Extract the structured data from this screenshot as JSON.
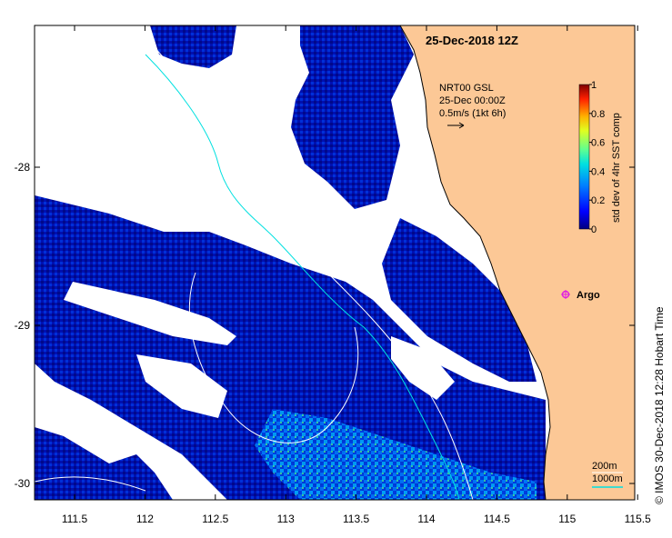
{
  "title": "25-Dec-2018 12Z",
  "current_info": {
    "line1": "NRT00 GSL",
    "line2": "25-Dec 00:00Z",
    "line3": "0.5m/s (1kt 6h)"
  },
  "colorbar": {
    "label": "std dev of 4hr SST comp",
    "ticks": [
      "0",
      "0.2",
      "0.4",
      "0.6",
      "0.8",
      "1"
    ],
    "colors": [
      "#00007f",
      "#0000ff",
      "#007fff",
      "#00ffff",
      "#7fff7f",
      "#ffff00",
      "#ff7f00",
      "#ff0000",
      "#7f0000"
    ]
  },
  "argo": {
    "label": "Argo",
    "color": "#e020e0"
  },
  "depth_legend": {
    "label1": "200m",
    "label2": "1000m",
    "color1": "#ffffff",
    "color2": "#00e0e0"
  },
  "credit": "© IMOS 30-Dec-2018 12:28 Hobart Time",
  "axes": {
    "x_ticks": [
      "111.5",
      "112",
      "112.5",
      "113",
      "113.5",
      "114",
      "114.5",
      "115",
      "115.5"
    ],
    "y_ticks": [
      "-28",
      "-29",
      "-30"
    ]
  },
  "colors": {
    "land": "#fcc896",
    "coast": "#000000",
    "cloud_free_background": "#ffffff",
    "sst_low": "#00008f",
    "sst_mid": "#0030d0",
    "sst_high": "#00a0ff"
  }
}
